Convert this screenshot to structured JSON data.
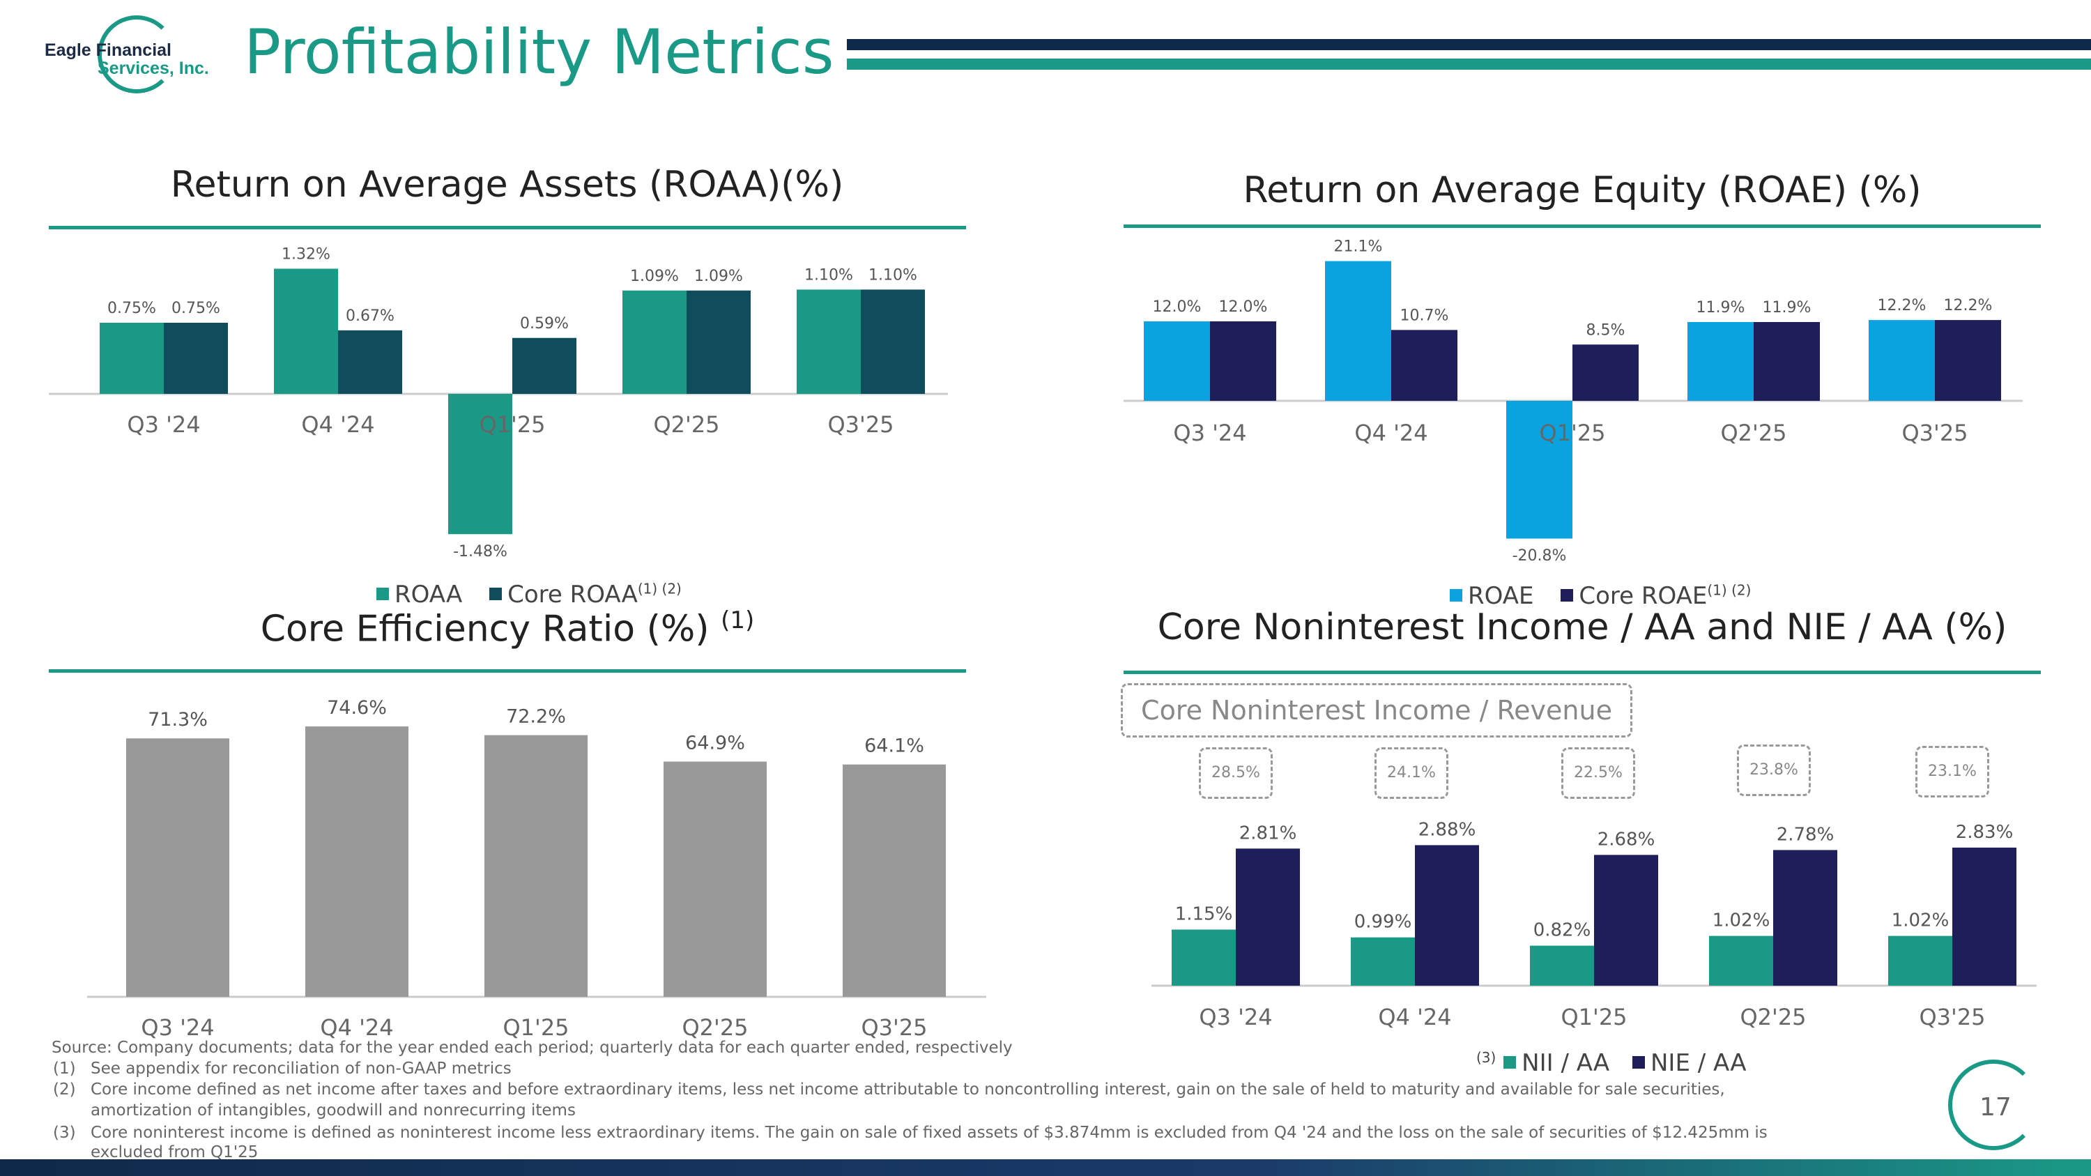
{
  "header": {
    "logo_line1": "Eagle Financial",
    "logo_line2": "Services, Inc.",
    "title": "Profitability Metrics"
  },
  "colors": {
    "teal": "#1a9a86",
    "dark_teal": "#0f4c5c",
    "cyan": "#0aa3e0",
    "navy": "#1e1f5a",
    "gray": "#999999"
  },
  "chart_data": [
    {
      "type": "bar",
      "id": "roaa",
      "title": "Return on Average Assets (ROAA)(%)",
      "categories": [
        "Q3 '24",
        "Q4 '24",
        "Q1'25",
        "Q2'25",
        "Q3'25"
      ],
      "series": [
        {
          "name": "ROAA",
          "values": [
            0.75,
            1.32,
            -1.48,
            1.09,
            1.1
          ],
          "labels": [
            "0.75%",
            "1.32%",
            "-1.48%",
            "1.09%",
            "1.10%"
          ]
        },
        {
          "name": "Core ROAA",
          "values": [
            0.75,
            0.67,
            0.59,
            1.09,
            1.1
          ],
          "labels": [
            "0.75%",
            "0.67%",
            "0.59%",
            "1.09%",
            "1.10%"
          ]
        }
      ],
      "legend_sup": "(1) (2)"
    },
    {
      "type": "bar",
      "id": "roae",
      "title": "Return on Average Equity (ROAE) (%)",
      "categories": [
        "Q3 '24",
        "Q4 '24",
        "Q1'25",
        "Q2'25",
        "Q3'25"
      ],
      "series": [
        {
          "name": "ROAE",
          "values": [
            12.0,
            21.1,
            -20.8,
            11.9,
            12.2
          ],
          "labels": [
            "12.0%",
            "21.1%",
            "-20.8%",
            "11.9%",
            "12.2%"
          ]
        },
        {
          "name": "Core ROAE",
          "values": [
            12.0,
            10.7,
            8.5,
            11.9,
            12.2
          ],
          "labels": [
            "12.0%",
            "10.7%",
            "8.5%",
            "11.9%",
            "12.2%"
          ]
        }
      ],
      "legend_sup": "(1) (2)"
    },
    {
      "type": "bar",
      "id": "eff",
      "title": "Core Efficiency Ratio (%)",
      "title_sup": "(1)",
      "categories": [
        "Q3 '24",
        "Q4 '24",
        "Q1'25",
        "Q2'25",
        "Q3'25"
      ],
      "series": [
        {
          "name": "Core Efficiency Ratio",
          "values": [
            71.3,
            74.6,
            72.2,
            64.9,
            64.1
          ],
          "labels": [
            "71.3%",
            "74.6%",
            "72.2%",
            "64.9%",
            "64.1%"
          ]
        }
      ]
    },
    {
      "type": "bar",
      "id": "nii",
      "title": "Core Noninterest Income / AA and NIE / AA (%)",
      "categories": [
        "Q3 '24",
        "Q4 '24",
        "Q1'25",
        "Q2'25",
        "Q3'25"
      ],
      "series": [
        {
          "name": "NII / AA",
          "values": [
            1.15,
            0.99,
            0.82,
            1.02,
            1.02
          ],
          "labels": [
            "1.15%",
            "0.99%",
            "0.82%",
            "1.02%",
            "1.02%"
          ]
        },
        {
          "name": "NIE / AA",
          "values": [
            2.81,
            2.88,
            2.68,
            2.78,
            2.83
          ],
          "labels": [
            "2.81%",
            "2.88%",
            "2.68%",
            "2.78%",
            "2.83%"
          ]
        }
      ],
      "annotation_title": "Core Noninterest Income / Revenue",
      "annotations": [
        "28.5%",
        "24.1%",
        "22.5%",
        "23.8%",
        "23.1%"
      ],
      "legend_sup": "(3)"
    }
  ],
  "footnotes": {
    "source": "Source: Company documents; data for the year ended each period; quarterly data for each quarter ended, respectively",
    "notes": [
      {
        "num": "(1)",
        "text": "See appendix for reconciliation of non-GAAP metrics"
      },
      {
        "num": "(2)",
        "text": "Core income defined as net income after taxes and before extraordinary items, less net income attributable to noncontrolling interest, gain on the sale of held to maturity and available for sale securities,",
        "text2": "amortization of intangibles, goodwill and nonrecurring items"
      },
      {
        "num": "(3)",
        "text": "Core noninterest income is defined as noninterest income less extraordinary items. The gain on sale of fixed assets of $3.874mm is excluded from Q4 '24 and the loss on the sale of securities of $12.425mm is",
        "text2": "excluded from Q1'25"
      }
    ]
  },
  "page_number": "17"
}
